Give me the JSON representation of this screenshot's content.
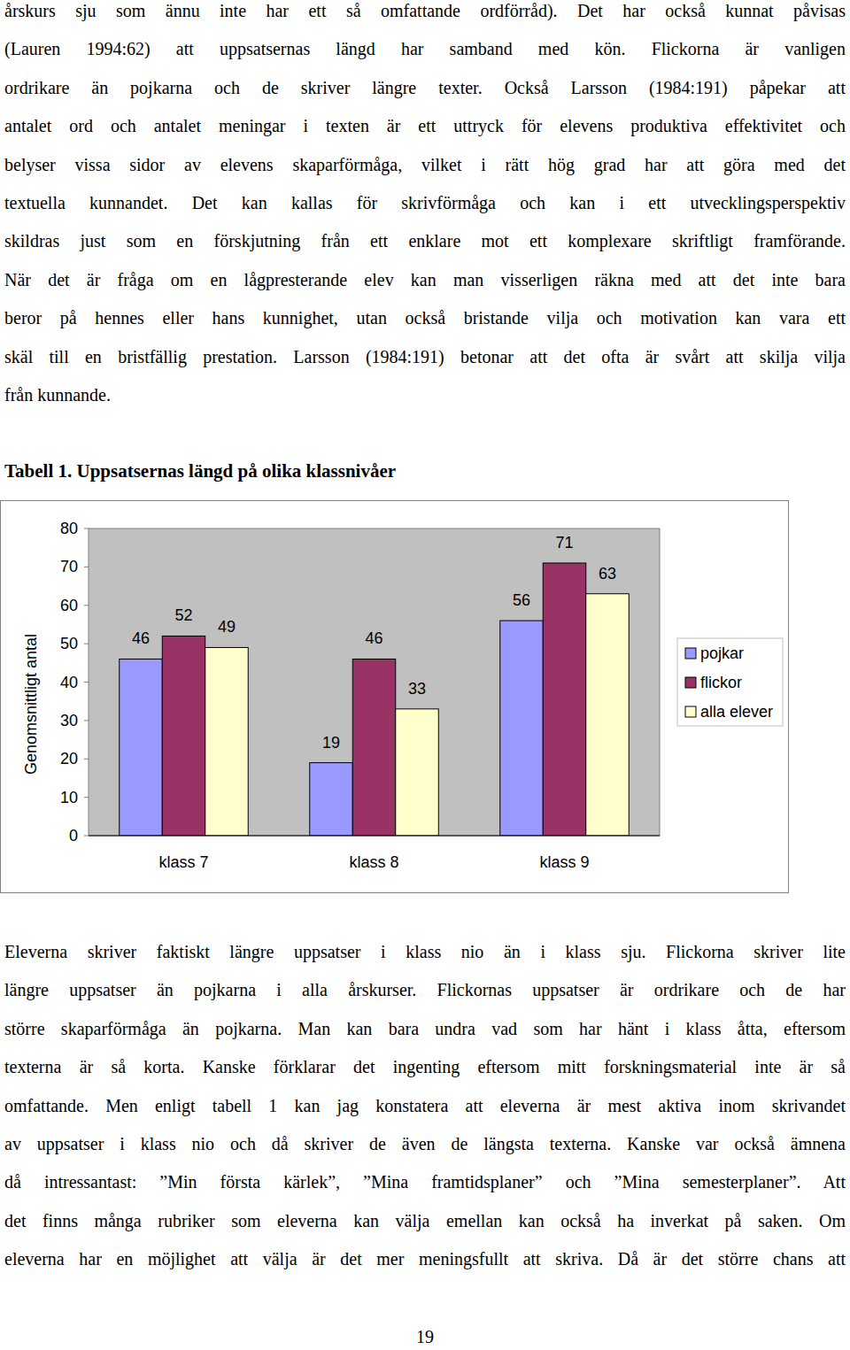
{
  "text_above": [
    "årskurs sju som ännu inte har ett så omfattande ordförråd). Det har också kunnat påvisas",
    "(Lauren 1994:62) att uppsatsernas längd har samband med kön. Flickorna är vanligen",
    "ordrikare än pojkarna och de skriver längre texter. Också Larsson (1984:191) påpekar att",
    "antalet ord och antalet meningar i texten är ett uttryck för elevens produktiva effektivitet och",
    "belyser vissa sidor av elevens skaparförmåga, vilket i rätt hög grad har att göra med det",
    "textuella kunnandet. Det kan kallas för skrivförmåga och kan i ett utvecklingsperspektiv",
    "skildras just som en förskjutning från ett enklare mot ett komplexare skriftligt framförande.",
    "När det är fråga om en lågpresterande elev kan man visserligen räkna med att det inte bara",
    "beror på hennes eller hans kunnighet, utan också bristande vilja och motivation kan vara ett",
    "skäl till en bristfällig prestation. Larsson (1984:191) betonar att det ofta är svårt att skilja vilja",
    "från kunnande."
  ],
  "caption": "Tabell 1. Uppsatsernas längd på olika klassnivåer",
  "chart_data": {
    "type": "bar",
    "y_label": "Genomsnittligt antal",
    "categories": [
      "klass 7",
      "klass 8",
      "klass 9"
    ],
    "series": [
      {
        "name": "pojkar",
        "color": "#9999ff",
        "values": [
          46,
          19,
          56
        ]
      },
      {
        "name": "flickor",
        "color": "#993366",
        "values": [
          52,
          46,
          71
        ]
      },
      {
        "name": "alla elever",
        "color": "#ffffcc",
        "values": [
          49,
          33,
          63
        ]
      }
    ],
    "ylim": [
      0,
      80
    ],
    "yticks": [
      0,
      10,
      20,
      30,
      40,
      50,
      60,
      70,
      80
    ],
    "grid": false,
    "legend": "right",
    "data_labels": true
  },
  "text_below": [
    "Eleverna skriver faktiskt längre uppsatser i klass nio än i klass sju. Flickorna skriver lite",
    "längre uppsatser än pojkarna i alla årskurser. Flickornas uppsatser är ordrikare och de har",
    "större skaparförmåga än pojkarna. Man kan bara undra vad som har hänt i klass åtta, eftersom",
    "texterna är så korta. Kanske förklarar det ingenting eftersom mitt forskningsmaterial inte är så",
    "omfattande. Men enligt tabell 1 kan jag konstatera att eleverna är mest aktiva inom skrivandet",
    "av uppsatser i klass nio och då skriver de även de längsta texterna. Kanske var också ämnena",
    "då intressantast: ”Min första kärlek”, ”Mina framtidsplaner” och ”Mina semesterplaner”. Att",
    "det finns många rubriker som eleverna kan välja emellan kan också ha inverkat på saken. Om",
    "eleverna har en möjlighet att välja är det mer meningsfullt att skriva. Då är det större chans att"
  ],
  "page_number": "19"
}
